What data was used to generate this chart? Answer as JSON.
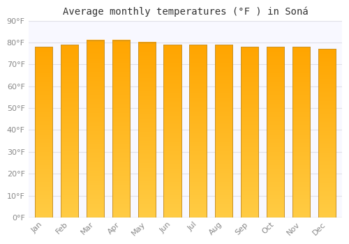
{
  "title": "Average monthly temperatures (°F ) in Soná",
  "months": [
    "Jan",
    "Feb",
    "Mar",
    "Apr",
    "May",
    "Jun",
    "Jul",
    "Aug",
    "Sep",
    "Oct",
    "Nov",
    "Dec"
  ],
  "values": [
    78,
    79,
    81,
    81,
    80,
    79,
    79,
    79,
    78,
    78,
    78,
    77
  ],
  "bar_color_top": "#FFA500",
  "bar_color_bottom": "#FFCC44",
  "bar_edge_color": "#C8922A",
  "ylim": [
    0,
    90
  ],
  "ytick_step": 10,
  "background_color": "#FFFFFF",
  "plot_bg_color": "#F8F8FF",
  "grid_color": "#E0E0E8",
  "title_fontsize": 10,
  "tick_fontsize": 8,
  "tick_color": "#888888",
  "title_color": "#333333"
}
